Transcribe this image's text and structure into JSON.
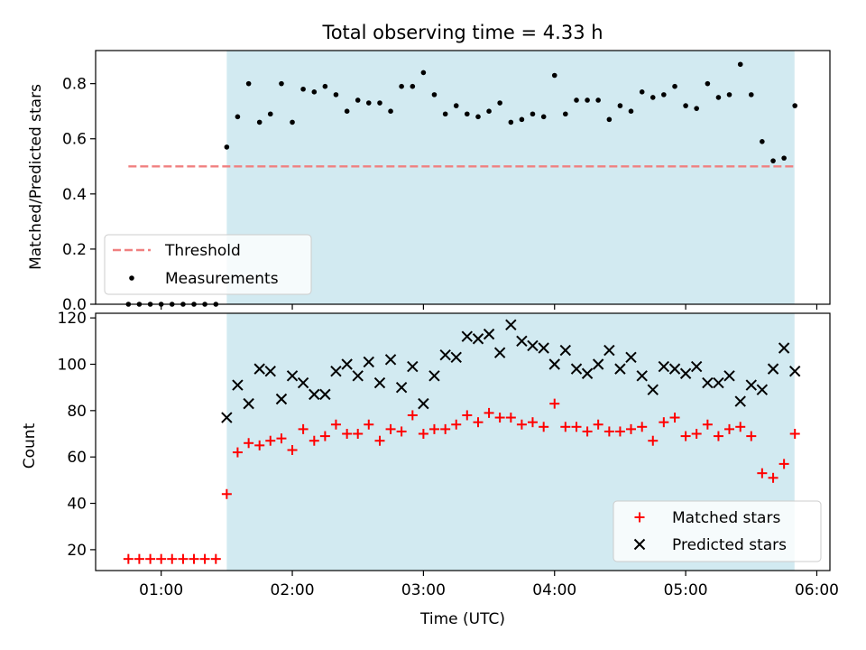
{
  "chart_data": [
    {
      "type": "scatter",
      "title": "Total observing time = 4.33 h",
      "ylabel": "Matched/Predicted stars",
      "xlabel": "",
      "ylim": [
        0,
        0.92
      ],
      "yticks": [
        "0.0",
        "0.2",
        "0.4",
        "0.6",
        "0.8"
      ],
      "ytick_values": [
        0.0,
        0.2,
        0.4,
        0.6,
        0.8
      ],
      "shaded_region": {
        "x": [
          1.5,
          5.83
        ],
        "color": "#add8e6"
      },
      "threshold": {
        "name": "Threshold",
        "value": 0.5,
        "x": [
          0.75,
          5.83
        ],
        "color": "#f08080"
      },
      "legend": {
        "position": "lower-left",
        "entries": [
          "Threshold",
          "Measurements"
        ]
      },
      "series": [
        {
          "name": "Measurements",
          "color": "#000000",
          "marker": "dot",
          "x": [
            0.75,
            0.833,
            0.917,
            1.0,
            1.083,
            1.167,
            1.25,
            1.333,
            1.417,
            1.5,
            1.583,
            1.667,
            1.75,
            1.833,
            1.917,
            2.0,
            2.083,
            2.167,
            2.25,
            2.333,
            2.417,
            2.5,
            2.583,
            2.667,
            2.75,
            2.833,
            2.917,
            3.0,
            3.083,
            3.167,
            3.25,
            3.333,
            3.417,
            3.5,
            3.583,
            3.667,
            3.75,
            3.833,
            3.917,
            4.0,
            4.083,
            4.167,
            4.25,
            4.333,
            4.417,
            4.5,
            4.583,
            4.667,
            4.75,
            4.833,
            4.917,
            5.0,
            5.083,
            5.167,
            5.25,
            5.333,
            5.417,
            5.5,
            5.583,
            5.667,
            5.75,
            5.833
          ],
          "y": [
            0,
            0,
            0,
            0,
            0,
            0,
            0,
            0,
            0,
            0.57,
            0.68,
            0.8,
            0.66,
            0.69,
            0.8,
            0.66,
            0.78,
            0.77,
            0.79,
            0.76,
            0.7,
            0.74,
            0.73,
            0.73,
            0.7,
            0.79,
            0.79,
            0.84,
            0.76,
            0.69,
            0.72,
            0.69,
            0.68,
            0.7,
            0.73,
            0.66,
            0.67,
            0.69,
            0.68,
            0.83,
            0.69,
            0.74,
            0.74,
            0.74,
            0.67,
            0.72,
            0.7,
            0.77,
            0.75,
            0.76,
            0.79,
            0.72,
            0.71,
            0.8,
            0.75,
            0.76,
            0.87,
            0.76,
            0.59,
            0.52,
            0.53,
            0.72
          ]
        }
      ]
    },
    {
      "type": "scatter",
      "title": "",
      "xlabel": "Time (UTC)",
      "ylabel": "Count",
      "xlim": [
        0.5,
        6.1
      ],
      "ylim": [
        11,
        122
      ],
      "xticks": [
        "01:00",
        "02:00",
        "03:00",
        "04:00",
        "05:00",
        "06:00"
      ],
      "xtick_values": [
        1,
        2,
        3,
        4,
        5,
        6
      ],
      "yticks": [
        "20",
        "40",
        "60",
        "80",
        "100",
        "120"
      ],
      "ytick_values": [
        20,
        40,
        60,
        80,
        100,
        120
      ],
      "shaded_region": {
        "x": [
          1.5,
          5.83
        ],
        "color": "#add8e6"
      },
      "legend": {
        "position": "lower-right",
        "entries": [
          "Matched stars",
          "Predicted stars"
        ]
      },
      "series": [
        {
          "name": "Matched stars",
          "color": "#ff0000",
          "marker": "plus",
          "x": [
            0.75,
            0.833,
            0.917,
            1.0,
            1.083,
            1.167,
            1.25,
            1.333,
            1.417,
            1.5,
            1.583,
            1.667,
            1.75,
            1.833,
            1.917,
            2.0,
            2.083,
            2.167,
            2.25,
            2.333,
            2.417,
            2.5,
            2.583,
            2.667,
            2.75,
            2.833,
            2.917,
            3.0,
            3.083,
            3.167,
            3.25,
            3.333,
            3.417,
            3.5,
            3.583,
            3.667,
            3.75,
            3.833,
            3.917,
            4.0,
            4.083,
            4.167,
            4.25,
            4.333,
            4.417,
            4.5,
            4.583,
            4.667,
            4.75,
            4.833,
            4.917,
            5.0,
            5.083,
            5.167,
            5.25,
            5.333,
            5.417,
            5.5,
            5.583,
            5.667,
            5.75,
            5.833
          ],
          "y": [
            16,
            16,
            16,
            16,
            16,
            16,
            16,
            16,
            16,
            44,
            62,
            66,
            65,
            67,
            68,
            63,
            72,
            67,
            69,
            74,
            70,
            70,
            74,
            67,
            72,
            71,
            78,
            70,
            72,
            72,
            74,
            78,
            75,
            79,
            77,
            77,
            74,
            75,
            73,
            83,
            73,
            73,
            71,
            74,
            71,
            71,
            72,
            73,
            67,
            75,
            77,
            69,
            70,
            74,
            69,
            72,
            73,
            69,
            53,
            51,
            57,
            70
          ]
        },
        {
          "name": "Predicted stars",
          "color": "#000000",
          "marker": "x",
          "x": [
            1.5,
            1.583,
            1.667,
            1.75,
            1.833,
            1.917,
            2.0,
            2.083,
            2.167,
            2.25,
            2.333,
            2.417,
            2.5,
            2.583,
            2.667,
            2.75,
            2.833,
            2.917,
            3.0,
            3.083,
            3.167,
            3.25,
            3.333,
            3.417,
            3.5,
            3.583,
            3.667,
            3.75,
            3.833,
            3.917,
            4.0,
            4.083,
            4.167,
            4.25,
            4.333,
            4.417,
            4.5,
            4.583,
            4.667,
            4.75,
            4.833,
            4.917,
            5.0,
            5.083,
            5.167,
            5.25,
            5.333,
            5.417,
            5.5,
            5.583,
            5.667,
            5.75,
            5.833
          ],
          "y": [
            77,
            91,
            83,
            98,
            97,
            85,
            95,
            92,
            87,
            87,
            97,
            100,
            95,
            101,
            92,
            102,
            90,
            99,
            83,
            95,
            104,
            103,
            112,
            111,
            113,
            105,
            117,
            110,
            108,
            107,
            100,
            106,
            98,
            96,
            100,
            106,
            98,
            103,
            95,
            89,
            99,
            98,
            96,
            99,
            92,
            92,
            95,
            84,
            91,
            89,
            98,
            107,
            97
          ]
        }
      ]
    }
  ]
}
